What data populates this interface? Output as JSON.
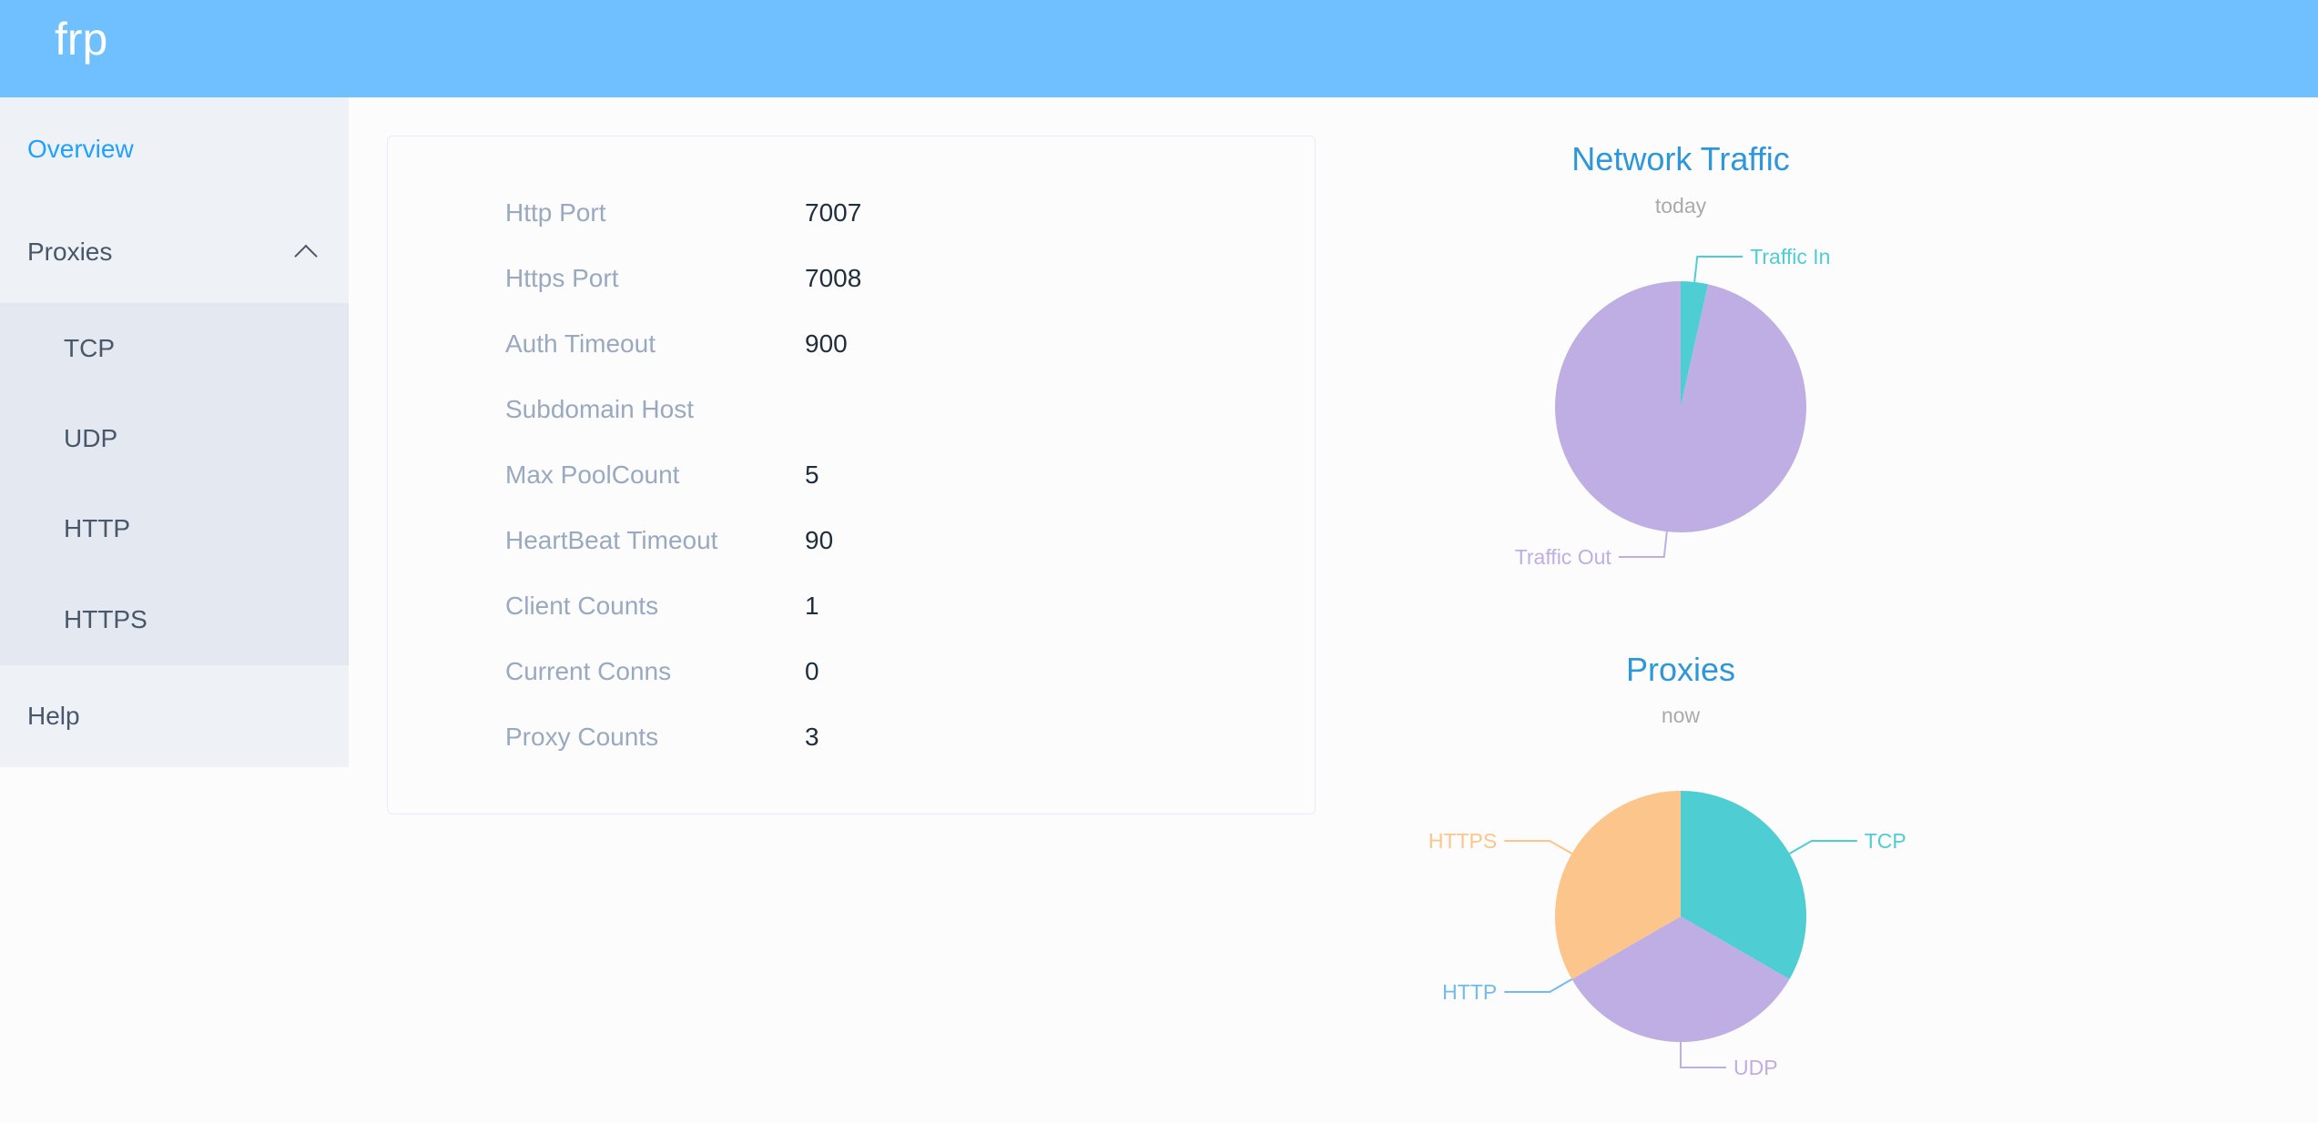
{
  "header": {
    "logo": "frp"
  },
  "sidebar": {
    "overview": "Overview",
    "proxies": "Proxies",
    "proxy_items": [
      "TCP",
      "UDP",
      "HTTP",
      "HTTPS"
    ],
    "help": "Help",
    "active": "Overview"
  },
  "server_info": [
    {
      "label": "Http Port",
      "value": "7007"
    },
    {
      "label": "Https Port",
      "value": "7008"
    },
    {
      "label": "Auth Timeout",
      "value": "900"
    },
    {
      "label": "Subdomain Host",
      "value": ""
    },
    {
      "label": "Max PoolCount",
      "value": "5"
    },
    {
      "label": "HeartBeat Timeout",
      "value": "90"
    },
    {
      "label": "Client Counts",
      "value": "1"
    },
    {
      "label": "Current Conns",
      "value": "0"
    },
    {
      "label": "Proxy Counts",
      "value": "3"
    }
  ],
  "colors": {
    "header": "#70bfff",
    "accent": "#20a0ff",
    "title": "#2d97d9",
    "teal": "#4ecdd3",
    "purple": "#bfaee3",
    "orange": "#fbc58b",
    "blue": "#72bbf0"
  },
  "chart_data": [
    {
      "type": "pie",
      "title": "Network Traffic",
      "subtitle": "today",
      "slices": [
        {
          "name": "Traffic In",
          "value": 3.5,
          "color": "#4ecdd3"
        },
        {
          "name": "Traffic Out",
          "value": 96.5,
          "color": "#bfaee3"
        }
      ]
    },
    {
      "type": "pie",
      "title": "Proxies",
      "subtitle": "now",
      "slices": [
        {
          "name": "TCP",
          "value": 1,
          "color": "#4ecdd3"
        },
        {
          "name": "UDP",
          "value": 1,
          "color": "#bfaee3"
        },
        {
          "name": "HTTP",
          "value": 0,
          "color": "#72bbf0"
        },
        {
          "name": "HTTPS",
          "value": 1,
          "color": "#fbc58b"
        }
      ]
    }
  ]
}
